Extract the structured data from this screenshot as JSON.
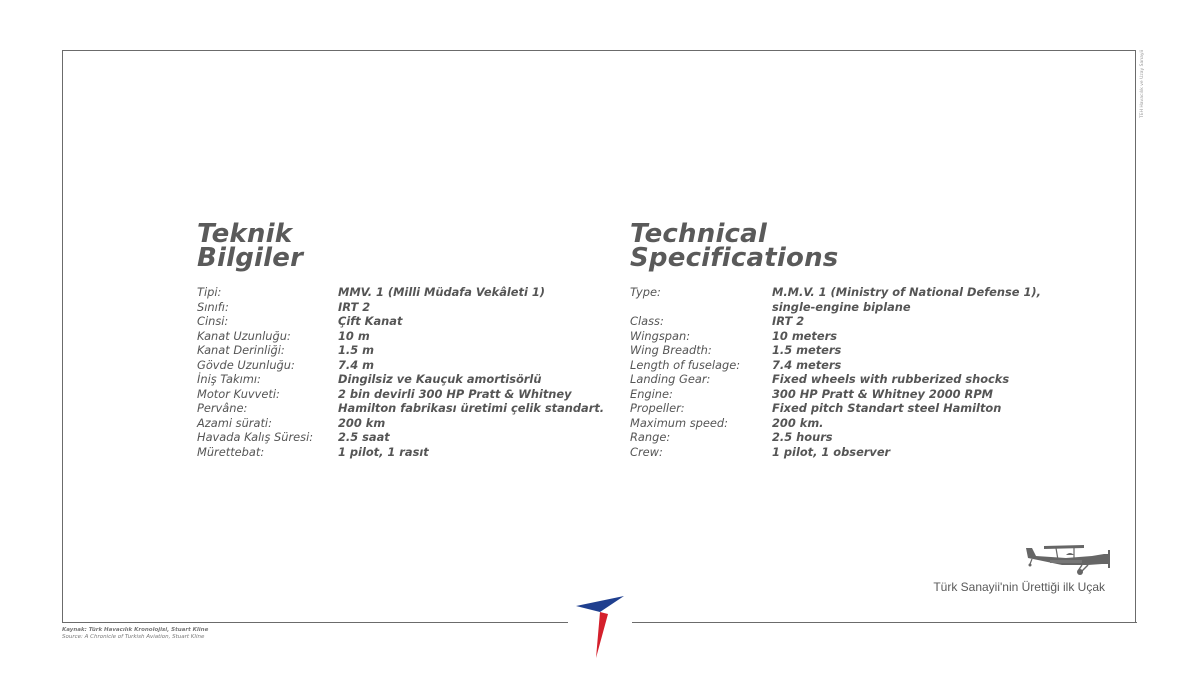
{
  "side_credit": "TEH Havacılık ve Uzay Sanayii",
  "left": {
    "heading": [
      "Teknik",
      "Bilgiler"
    ],
    "rows": [
      {
        "label": "Tipi:",
        "value": "MMV. 1 (Milli Müdafa Vekâleti 1)"
      },
      {
        "label": "Sınıfı:",
        "value": "IRT 2"
      },
      {
        "label": "Cinsi:",
        "value": "Çift Kanat"
      },
      {
        "label": "Kanat Uzunluğu:",
        "value": "10 m"
      },
      {
        "label": "Kanat Derinliği:",
        "value": "1.5 m"
      },
      {
        "label": "Gövde Uzunluğu:",
        "value": "7.4 m"
      },
      {
        "label": "İniş Takımı:",
        "value": "Dingilsiz ve Kauçuk amortisörlü"
      },
      {
        "label": "Motor Kuvveti:",
        "value": "2 bin devirli 300 HP Pratt & Whitney"
      },
      {
        "label": "Pervâne:",
        "value": "Hamilton fabrikası üretimi çelik standart."
      },
      {
        "label": "Azami sürati:",
        "value": "200 km"
      },
      {
        "label": "Havada Kalış Süresi:",
        "value": "2.5 saat"
      },
      {
        "label": "Mürettebat:",
        "value": "1 pilot, 1 rasıt"
      }
    ]
  },
  "right": {
    "heading": [
      "Technical",
      "Specifications"
    ],
    "rows": [
      {
        "label": "Type:",
        "value": "M.M.V. 1 (Ministry of National Defense 1), single-engine biplane"
      },
      {
        "label": "Class:",
        "value": "IRT 2"
      },
      {
        "label": "Wingspan:",
        "value": "10 meters"
      },
      {
        "label": "Wing Breadth:",
        "value": "1.5 meters"
      },
      {
        "label": "Length of fuselage:",
        "value": "7.4 meters"
      },
      {
        "label": "Landing Gear:",
        "value": "Fixed wheels with rubberized shocks"
      },
      {
        "label": "Engine:",
        "value": "300 HP Pratt & Whitney 2000 RPM"
      },
      {
        "label": "Propeller:",
        "value": "Fixed pitch Standart steel Hamilton"
      },
      {
        "label": "Maximum speed:",
        "value": "200 km."
      },
      {
        "label": "Range:",
        "value": "2.5 hours"
      },
      {
        "label": "Crew:",
        "value": "1 pilot, 1 observer"
      }
    ]
  },
  "caption": "Türk Sanayii'nin Ürettiği ilk Uçak",
  "source": {
    "tr": "Kaynak: Türk Havacılık Kronolojisi, Stuart Kline",
    "en": "Source: A Chronicle of Turkish Aviation, Stuart Kline"
  },
  "colors": {
    "logo_blue": "#1f3f8f",
    "logo_red": "#d4202c",
    "text": "#555555",
    "frame": "#6b6b6b"
  }
}
